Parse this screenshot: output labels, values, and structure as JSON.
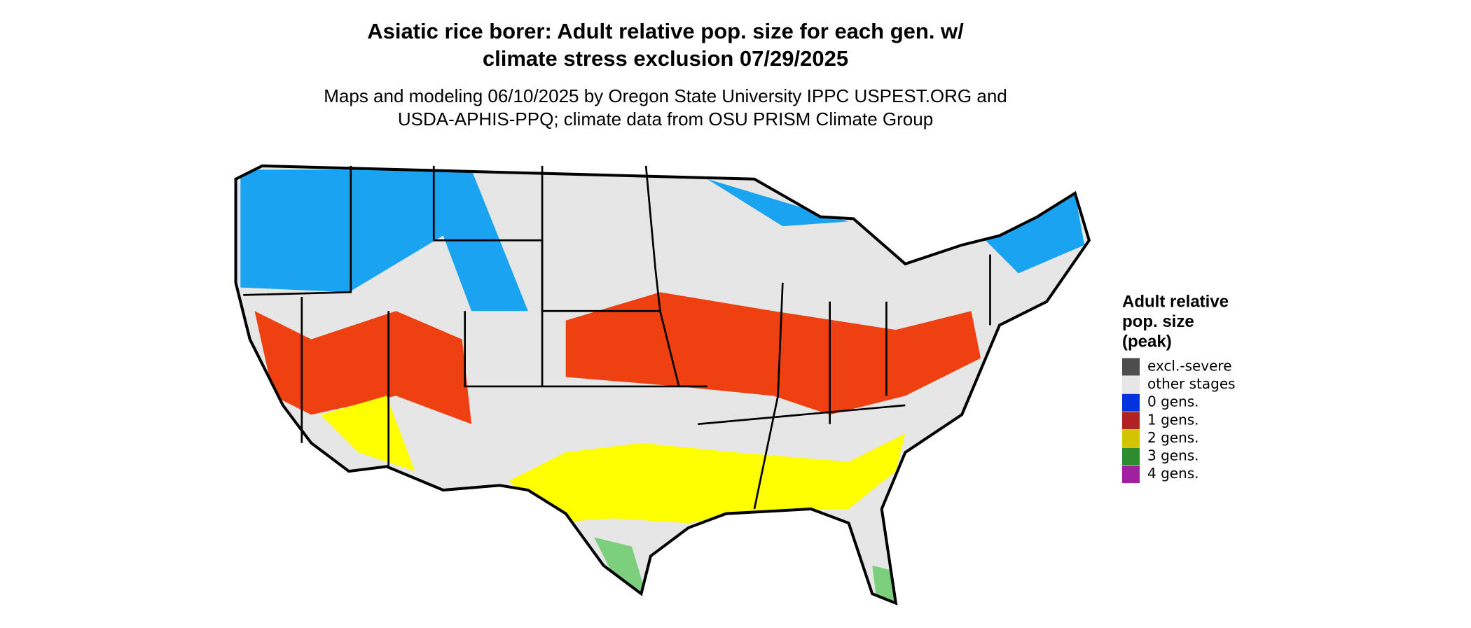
{
  "header": {
    "title": [
      "Asiatic rice borer: Adult relative pop. size for each gen. w/",
      "climate stress exclusion 07/29/2025"
    ],
    "subtitle": [
      "Maps and modeling 06/10/2025 by Oregon State University IPPC USPEST.ORG and",
      "USDA-APHIS-PPQ; climate data from OSU PRISM Climate Group"
    ]
  },
  "legend": {
    "title": [
      "Adult relative",
      "pop. size",
      "(peak)"
    ],
    "items": [
      {
        "label": "excl.-severe",
        "color": "#4d4d4d"
      },
      {
        "label": "other stages",
        "color": "#e6e6e6"
      },
      {
        "label": "0 gens.",
        "color": "#0033dd"
      },
      {
        "label": "1 gens.",
        "color": "#b22222"
      },
      {
        "label": "2 gens.",
        "color": "#d4c400"
      },
      {
        "label": "3 gens.",
        "color": "#2e8b2e"
      },
      {
        "label": "4 gens.",
        "color": "#a020a0"
      }
    ]
  }
}
